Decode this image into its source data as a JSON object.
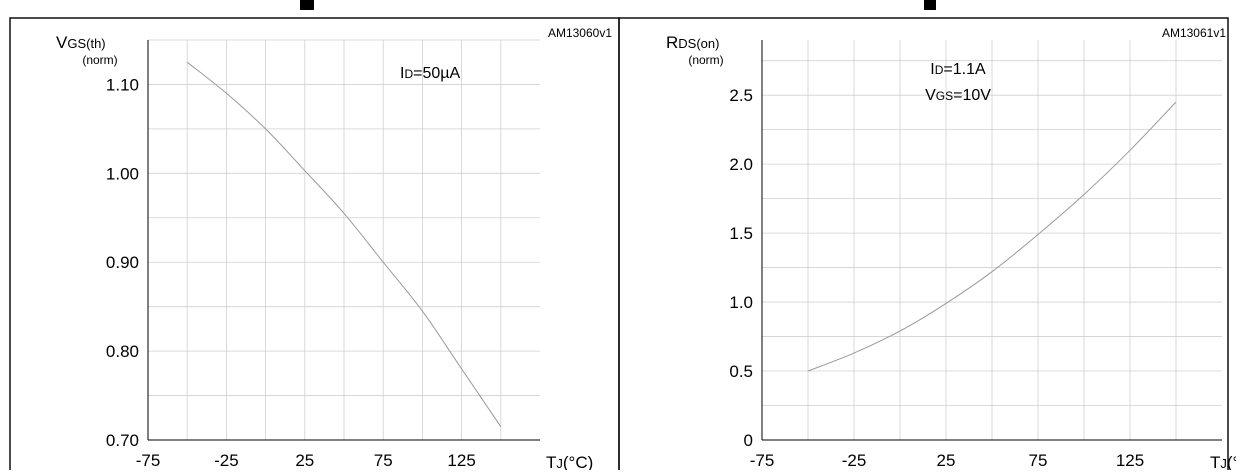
{
  "chart_data": [
    {
      "type": "line",
      "code": "AM13060v1",
      "ylabel_main": "V",
      "ylabel_sub": "GS(th)",
      "ylabel_norm": "(norm)",
      "xlabel_main": "T",
      "xlabel_sub": "J",
      "xlabel_unit": "(°C)",
      "condition_lines": [
        {
          "main": "I",
          "sub": "D",
          "rest": "=50µA"
        }
      ],
      "x_ticks": [
        "-75",
        "-25",
        "25",
        "75",
        "125"
      ],
      "y_ticks": [
        "0.70",
        "0.80",
        "0.90",
        "1.00",
        "1.10"
      ],
      "xlim": [
        -75,
        175
      ],
      "ylim": [
        0.7,
        1.15
      ],
      "series": [
        {
          "x": [
            -50,
            -25,
            0,
            25,
            50,
            75,
            100,
            125,
            150
          ],
          "y": [
            1.125,
            1.09,
            1.05,
            1.003,
            0.955,
            0.9,
            0.845,
            0.78,
            0.715
          ]
        }
      ]
    },
    {
      "type": "line",
      "code": "AM13061v1",
      "ylabel_main": "R",
      "ylabel_sub": "DS(on)",
      "ylabel_norm": "(norm)",
      "xlabel_main": "T",
      "xlabel_sub": "J",
      "xlabel_unit": "(°C)",
      "condition_lines": [
        {
          "main": "I",
          "sub": "D",
          "rest": "=1.1A"
        },
        {
          "main": "V",
          "sub": "GS",
          "rest": "=10V"
        }
      ],
      "x_ticks": [
        "-75",
        "-25",
        "25",
        "75",
        "125"
      ],
      "y_ticks": [
        "0",
        "0.5",
        "1.0",
        "1.5",
        "2.0",
        "2.5"
      ],
      "xlim": [
        -75,
        175
      ],
      "ylim": [
        0,
        2.9
      ],
      "series": [
        {
          "x": [
            -50,
            -25,
            0,
            25,
            50,
            75,
            100,
            125,
            150
          ],
          "y": [
            0.5,
            0.63,
            0.79,
            0.99,
            1.22,
            1.49,
            1.78,
            2.1,
            2.45
          ]
        }
      ]
    }
  ]
}
